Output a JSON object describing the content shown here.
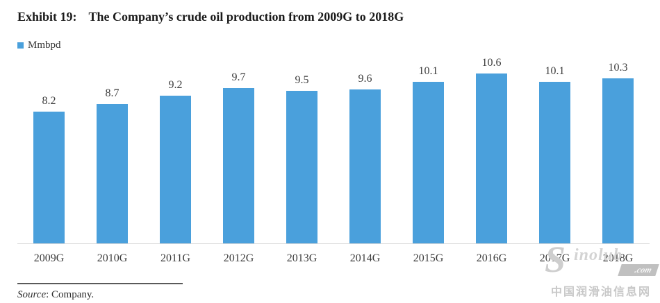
{
  "title": {
    "exhibit_label": "Exhibit 19:",
    "text": "The Company’s crude oil production from 2009G to 2018G"
  },
  "legend": {
    "label": "Mmbpd",
    "swatch_color": "#4AA0DC"
  },
  "chart_data": {
    "type": "bar",
    "categories": [
      "2009G",
      "2010G",
      "2011G",
      "2012G",
      "2013G",
      "2014G",
      "2015G",
      "2016G",
      "2017G",
      "2018G"
    ],
    "values": [
      8.2,
      8.7,
      9.2,
      9.7,
      9.5,
      9.6,
      10.1,
      10.6,
      10.1,
      10.3
    ],
    "series_name": "Mmbpd",
    "title": "The Company’s crude oil production from 2009G to 2018G",
    "xlabel": "",
    "ylabel": "",
    "ylim": [
      0,
      11.6
    ],
    "bar_color": "#4AA0DC",
    "grid": false,
    "data_labels": true,
    "legend_position": "top-left"
  },
  "source": {
    "prefix": "Source",
    "rest": ": Company."
  },
  "watermark": {
    "logo_s": "S",
    "logo_rest": "inolub",
    "banner": ".com",
    "caption": "中国润滑油信息网"
  }
}
